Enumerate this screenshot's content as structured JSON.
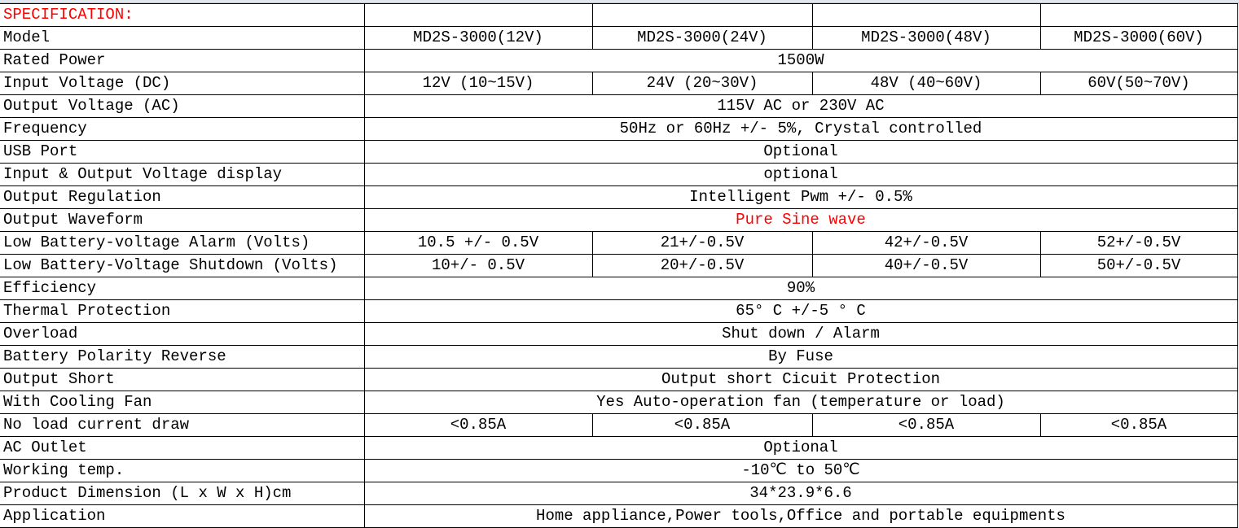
{
  "colors": {
    "highlight": "#ff0000",
    "border": "#000000"
  },
  "title": "SPECIFICATION:",
  "rows": [
    {
      "label": "Model",
      "values": [
        "MD2S-3000(12V)",
        "MD2S-3000(24V)",
        "MD2S-3000(48V)",
        "MD2S-3000(60V)"
      ]
    },
    {
      "label": "Rated Power",
      "value": "1500W"
    },
    {
      "label": "Input Voltage (DC)",
      "values": [
        "12V (10~15V)",
        "24V (20~30V)",
        "48V (40~60V)",
        "60V(50~70V)"
      ]
    },
    {
      "label": "Output Voltage (AC)",
      "value": "115V AC or 230V AC"
    },
    {
      "label": "Frequency",
      "value": "50Hz or 60Hz +/- 5%, Crystal controlled"
    },
    {
      "label": "USB Port",
      "value": "Optional"
    },
    {
      "label": "Input & Output Voltage display",
      "value": "optional"
    },
    {
      "label": "Output Regulation",
      "value": "Intelligent Pwm +/- 0.5%"
    },
    {
      "label": "Output Waveform",
      "value": "Pure Sine wave",
      "highlight": true
    },
    {
      "label": "Low Battery-voltage Alarm (Volts)",
      "values": [
        "10.5 +/- 0.5V",
        "21+/-0.5V",
        "42+/-0.5V",
        "52+/-0.5V"
      ]
    },
    {
      "label": "Low Battery-Voltage Shutdown (Volts)",
      "values": [
        "10+/- 0.5V",
        "20+/-0.5V",
        "40+/-0.5V",
        "50+/-0.5V"
      ]
    },
    {
      "label": "Efficiency",
      "value": "90%"
    },
    {
      "label": "Thermal Protection",
      "value": "65° C +/-5 ° C"
    },
    {
      "label": "Overload",
      "value": "Shut down / Alarm"
    },
    {
      "label": "Battery Polarity Reverse",
      "value": "By Fuse"
    },
    {
      "label": "Output Short",
      "value": "Output short Cicuit Protection"
    },
    {
      "label": "With Cooling Fan",
      "value": "Yes Auto-operation fan (temperature or load)"
    },
    {
      "label": "No load current draw",
      "values": [
        "<0.85A",
        "<0.85A",
        "<0.85A",
        "<0.85A"
      ]
    },
    {
      "label": "AC Outlet",
      "value": "Optional"
    },
    {
      "label": "Working temp.",
      "value": "-10℃ to 50℃"
    },
    {
      "label": "Product Dimension (L x W x H)cm",
      "value": "34*23.9*6.6"
    },
    {
      "label": "Application",
      "value": "Home appliance,Power tools,Office and portable equipments"
    }
  ]
}
